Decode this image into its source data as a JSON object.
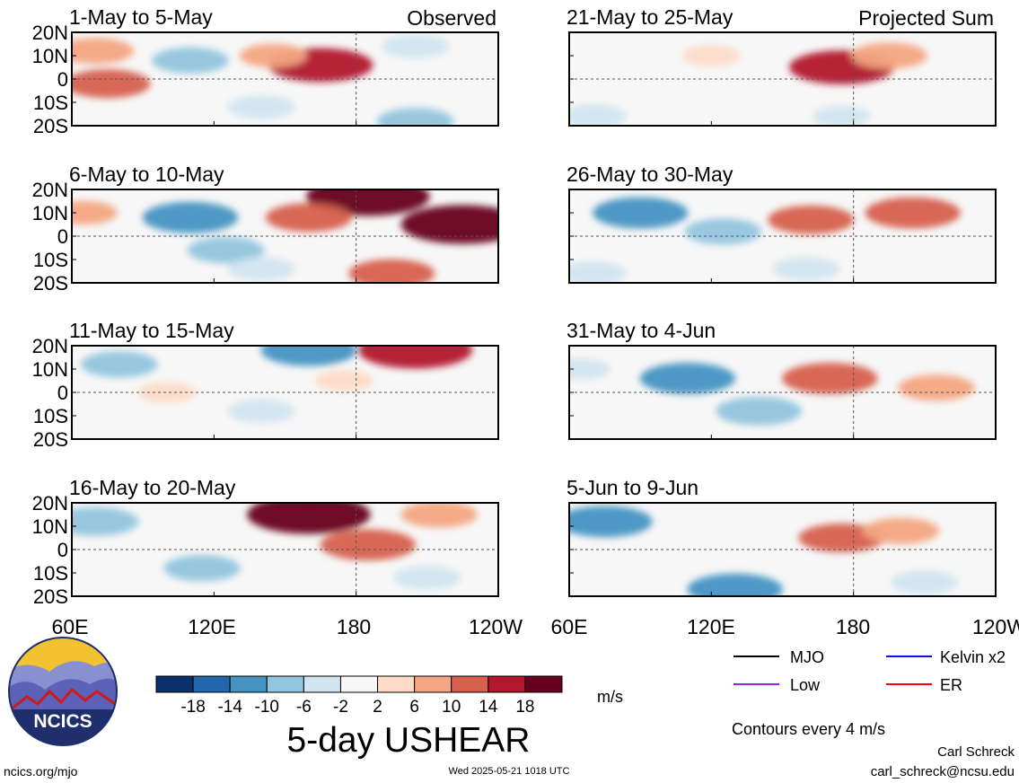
{
  "figure": {
    "title": "5-day USHEAR",
    "observed_tag": "Observed",
    "projected_tag": "Projected Sum",
    "lat_labels": [
      "20N",
      "10N",
      "0",
      "10S",
      "20S"
    ],
    "lon_labels": [
      "60E",
      "120E",
      "180",
      "120W"
    ],
    "colorbar": {
      "ticks": [
        "-18",
        "-14",
        "-10",
        "-6",
        "-2",
        "2",
        "6",
        "10",
        "14",
        "18"
      ],
      "units": "m/s",
      "colors": [
        "#08306b",
        "#2166ac",
        "#4393c3",
        "#92c5de",
        "#d1e5f0",
        "#f7f7f7",
        "#fddbc7",
        "#f4a582",
        "#d6604d",
        "#b2182b",
        "#67001f"
      ]
    },
    "legend": [
      {
        "label": "MJO",
        "color": "#000000"
      },
      {
        "label": "Kelvin x2",
        "color": "#1010e0"
      },
      {
        "label": "Low",
        "color": "#a020f0"
      },
      {
        "label": "ER",
        "color": "#ff0000"
      }
    ],
    "contours_note": "Contours every 4 m/s",
    "credit_name": "Carl Schreck",
    "credit_email": "carl_schreck@ncsu.edu",
    "site": "ncics.org/mjo",
    "timestamp": "Wed 2025-05-21 1018 UTC",
    "logo_text": "NCICS"
  },
  "chart_data": [
    {
      "type": "heatmap",
      "title": "1-May to 5-May",
      "group": "Observed",
      "variable": "5-day USHEAR",
      "units": "m/s",
      "x_range": [
        "60E",
        "120W"
      ],
      "y_range": [
        "20S",
        "20N"
      ],
      "features": [
        {
          "lon": 165,
          "lat": 6,
          "value": 14
        },
        {
          "lon": 75,
          "lat": -2,
          "value": 10
        },
        {
          "lon": 70,
          "lat": 12,
          "value": 8
        },
        {
          "lon": 145,
          "lat": 10,
          "value": 6
        },
        {
          "lon": 110,
          "lat": 8,
          "value": -8
        },
        {
          "lon": 140,
          "lat": -12,
          "value": -6
        },
        {
          "lon": 205,
          "lat": -18,
          "value": -8
        },
        {
          "lon": 205,
          "lat": 14,
          "value": -6
        }
      ]
    },
    {
      "type": "heatmap",
      "title": "21-May to 25-May",
      "group": "Projected Sum",
      "variable": "5-day USHEAR",
      "units": "m/s",
      "x_range": [
        "60E",
        "120W"
      ],
      "y_range": [
        "20S",
        "20N"
      ],
      "features": [
        {
          "lon": 175,
          "lat": 5,
          "value": 14
        },
        {
          "lon": 195,
          "lat": 10,
          "value": 8
        },
        {
          "lon": 120,
          "lat": 10,
          "value": 4
        },
        {
          "lon": 70,
          "lat": -16,
          "value": -6
        },
        {
          "lon": 175,
          "lat": -16,
          "value": -4
        }
      ]
    },
    {
      "type": "heatmap",
      "title": "6-May to 10-May",
      "group": "Observed",
      "variable": "5-day USHEAR",
      "units": "m/s",
      "x_range": [
        "60E",
        "120W"
      ],
      "y_range": [
        "20S",
        "20N"
      ],
      "features": [
        {
          "lon": 185,
          "lat": 17,
          "value": 18
        },
        {
          "lon": 225,
          "lat": 5,
          "value": 18
        },
        {
          "lon": 160,
          "lat": 8,
          "value": 10
        },
        {
          "lon": 195,
          "lat": -16,
          "value": 10
        },
        {
          "lon": 65,
          "lat": 10,
          "value": 6
        },
        {
          "lon": 110,
          "lat": 8,
          "value": -12
        },
        {
          "lon": 125,
          "lat": -6,
          "value": -8
        },
        {
          "lon": 140,
          "lat": -14,
          "value": -6
        }
      ]
    },
    {
      "type": "heatmap",
      "title": "26-May to 30-May",
      "group": "Projected Sum",
      "variable": "5-day USHEAR",
      "units": "m/s",
      "x_range": [
        "60E",
        "120W"
      ],
      "y_range": [
        "20S",
        "20N"
      ],
      "features": [
        {
          "lon": 205,
          "lat": 10,
          "value": 12
        },
        {
          "lon": 162,
          "lat": 7,
          "value": 10
        },
        {
          "lon": 90,
          "lat": 10,
          "value": -12
        },
        {
          "lon": 125,
          "lat": 2,
          "value": -8
        },
        {
          "lon": 160,
          "lat": -14,
          "value": -6
        },
        {
          "lon": 70,
          "lat": -16,
          "value": -6
        }
      ]
    },
    {
      "type": "heatmap",
      "title": "11-May to 15-May",
      "group": "Observed",
      "variable": "5-day USHEAR",
      "units": "m/s",
      "x_range": [
        "60E",
        "120W"
      ],
      "y_range": [
        "20S",
        "20N"
      ],
      "features": [
        {
          "lon": 205,
          "lat": 18,
          "value": 16
        },
        {
          "lon": 160,
          "lat": 18,
          "value": -12
        },
        {
          "lon": 80,
          "lat": 12,
          "value": -8
        },
        {
          "lon": 140,
          "lat": -8,
          "value": -6
        },
        {
          "lon": 100,
          "lat": 0,
          "value": 4
        },
        {
          "lon": 175,
          "lat": 5,
          "value": 4
        }
      ]
    },
    {
      "type": "heatmap",
      "title": "31-May to 4-Jun",
      "group": "Projected Sum",
      "variable": "5-day USHEAR",
      "units": "m/s",
      "x_range": [
        "60E",
        "120W"
      ],
      "y_range": [
        "20S",
        "20N"
      ],
      "features": [
        {
          "lon": 170,
          "lat": 6,
          "value": 12
        },
        {
          "lon": 215,
          "lat": 2,
          "value": 8
        },
        {
          "lon": 110,
          "lat": 6,
          "value": -12
        },
        {
          "lon": 140,
          "lat": -8,
          "value": -10
        },
        {
          "lon": 65,
          "lat": 10,
          "value": -4
        }
      ]
    },
    {
      "type": "heatmap",
      "title": "16-May to 20-May",
      "group": "Observed",
      "variable": "5-day USHEAR",
      "units": "m/s",
      "x_range": [
        "60E",
        "120W"
      ],
      "y_range": [
        "20S",
        "20N"
      ],
      "features": [
        {
          "lon": 160,
          "lat": 15,
          "value": 18
        },
        {
          "lon": 185,
          "lat": 2,
          "value": 12
        },
        {
          "lon": 215,
          "lat": 15,
          "value": 8
        },
        {
          "lon": 70,
          "lat": 12,
          "value": -10
        },
        {
          "lon": 115,
          "lat": -8,
          "value": -8
        },
        {
          "lon": 210,
          "lat": -12,
          "value": -6
        }
      ]
    },
    {
      "type": "heatmap",
      "title": "5-Jun to 9-Jun",
      "group": "Projected Sum",
      "variable": "5-day USHEAR",
      "units": "m/s",
      "x_range": [
        "60E",
        "120W"
      ],
      "y_range": [
        "20S",
        "20N"
      ],
      "features": [
        {
          "lon": 175,
          "lat": 5,
          "value": 10
        },
        {
          "lon": 200,
          "lat": 8,
          "value": 8
        },
        {
          "lon": 75,
          "lat": 12,
          "value": -12
        },
        {
          "lon": 130,
          "lat": -17,
          "value": -12
        },
        {
          "lon": 210,
          "lat": -14,
          "value": -6
        }
      ]
    }
  ]
}
